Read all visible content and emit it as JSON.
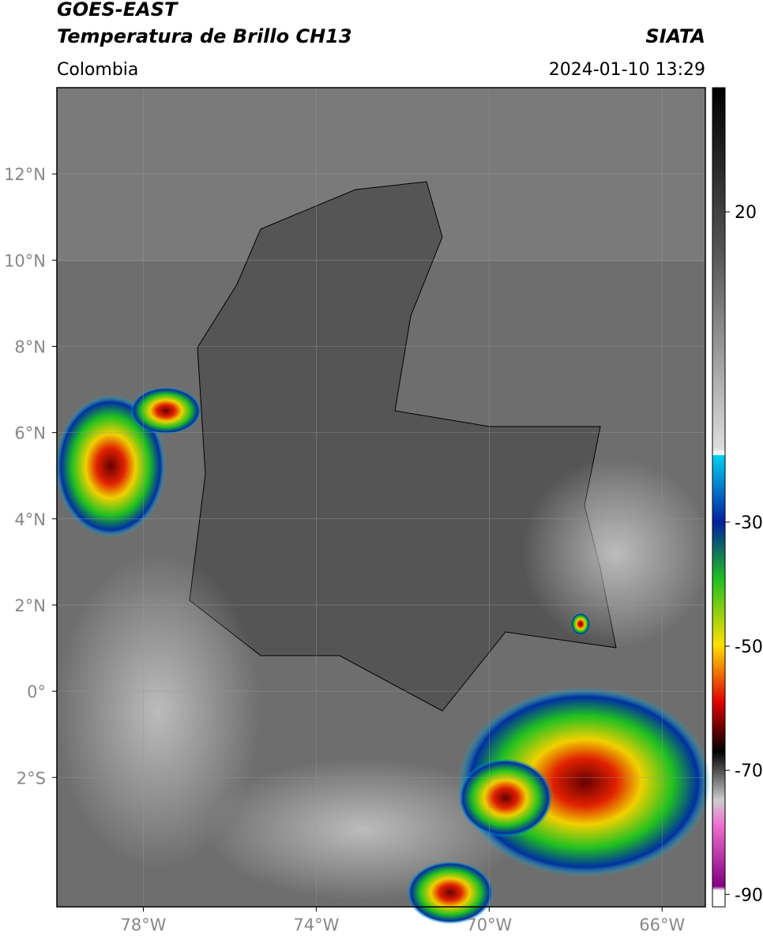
{
  "header": {
    "title": "GOES-EAST",
    "subtitle": "Temperatura de Brillo CH13",
    "source": "SIATA",
    "region": "Colombia",
    "timestamp": "2024-01-10 13:29"
  },
  "map": {
    "xlim": [
      -80,
      -65
    ],
    "ylim": [
      -5,
      14
    ],
    "xticks": [
      {
        "value": -78,
        "label": "78°W"
      },
      {
        "value": -74,
        "label": "74°W"
      },
      {
        "value": -70,
        "label": "70°W"
      },
      {
        "value": -66,
        "label": "66°W"
      }
    ],
    "yticks": [
      {
        "value": 12,
        "label": "12°N"
      },
      {
        "value": 10,
        "label": "10°N"
      },
      {
        "value": 8,
        "label": "8°N"
      },
      {
        "value": 6,
        "label": "6°N"
      },
      {
        "value": 4,
        "label": "4°N"
      },
      {
        "value": 2,
        "label": "2°N"
      },
      {
        "value": 0,
        "label": "0°"
      },
      {
        "value": -2,
        "label": "2°S"
      }
    ],
    "grid": true
  },
  "colorbar": {
    "lim": [
      -92,
      40
    ],
    "ticks": [
      20,
      -30,
      -50,
      -70,
      -90
    ]
  }
}
